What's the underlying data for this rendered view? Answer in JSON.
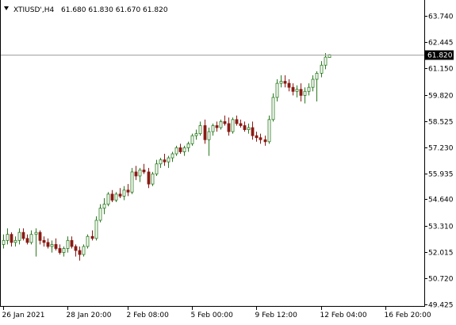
{
  "header": {
    "symbol_caption": "XTIUSD',H4",
    "ohlc_values": "61.680 61.830 61.670 61.820",
    "menu_icon": "triangle-down-icon"
  },
  "price_label": "61.820",
  "colors": {
    "background": "#ffffff",
    "axis": "#000000",
    "bull_body": "#ffffff",
    "bear_body": "#000000",
    "up_shadow": "#2a7a1f",
    "down_shadow": "#8a1a14",
    "candle_outline": "#000000",
    "price_line": "#a0a0a0",
    "price_label_bg": "#000000",
    "price_label_text": "#ffffff"
  },
  "chart_data": {
    "type": "candlestick",
    "symbol": "XTIUSD'",
    "timeframe": "H4",
    "current": {
      "open": 61.68,
      "high": 61.83,
      "low": 61.67,
      "close": 61.82
    },
    "y_ticks": [
      "63.740",
      "62.445",
      "61.150",
      "59.820",
      "58.525",
      "57.230",
      "55.935",
      "54.640",
      "53.310",
      "52.015",
      "50.720",
      "49.425"
    ],
    "y_tick_values": [
      63.74,
      62.445,
      61.15,
      59.82,
      58.525,
      57.23,
      55.935,
      54.64,
      53.31,
      52.015,
      50.72,
      49.425
    ],
    "ylim": [
      49.425,
      64.3
    ],
    "x_ticks": [
      "26 Jan 2021",
      "28 Jan 20:00",
      "2 Feb 08:00",
      "5 Feb 00:00",
      "9 Feb 12:00",
      "12 Feb 04:00",
      "16 Feb 20:00"
    ],
    "x_tick_candle_index": [
      0,
      16,
      31,
      47,
      63,
      79,
      95
    ],
    "grid": false,
    "candles": [
      [
        52.4,
        52.9,
        52.2,
        52.6
      ],
      [
        52.6,
        53.2,
        52.4,
        52.9
      ],
      [
        52.9,
        53.0,
        52.3,
        52.5
      ],
      [
        52.5,
        52.8,
        52.3,
        52.6
      ],
      [
        52.6,
        53.2,
        52.4,
        53.0
      ],
      [
        53.0,
        53.2,
        52.6,
        52.7
      ],
      [
        52.7,
        52.9,
        52.4,
        52.5
      ],
      [
        52.5,
        53.1,
        52.4,
        52.9
      ],
      [
        52.9,
        53.2,
        51.8,
        53.0
      ],
      [
        53.0,
        53.1,
        52.4,
        52.6
      ],
      [
        52.6,
        52.8,
        52.3,
        52.5
      ],
      [
        52.5,
        52.7,
        52.2,
        52.3
      ],
      [
        52.3,
        52.6,
        52.0,
        52.4
      ],
      [
        52.4,
        52.7,
        52.1,
        52.2
      ],
      [
        52.2,
        52.4,
        51.9,
        52.0
      ],
      [
        52.0,
        52.3,
        51.8,
        52.2
      ],
      [
        52.2,
        52.8,
        52.0,
        52.6
      ],
      [
        52.6,
        52.8,
        52.2,
        52.3
      ],
      [
        52.3,
        52.4,
        51.8,
        52.1
      ],
      [
        52.1,
        52.3,
        51.6,
        51.9
      ],
      [
        51.9,
        52.4,
        51.8,
        52.3
      ],
      [
        52.3,
        52.9,
        52.2,
        52.8
      ],
      [
        52.8,
        53.1,
        52.6,
        52.7
      ],
      [
        52.7,
        53.8,
        52.6,
        53.6
      ],
      [
        53.6,
        54.4,
        53.5,
        54.2
      ],
      [
        54.2,
        54.7,
        53.9,
        54.4
      ],
      [
        54.4,
        55.0,
        54.3,
        54.9
      ],
      [
        54.9,
        55.1,
        54.5,
        54.6
      ],
      [
        54.6,
        55.0,
        54.5,
        54.9
      ],
      [
        54.9,
        55.2,
        54.7,
        54.8
      ],
      [
        54.8,
        55.3,
        54.6,
        55.1
      ],
      [
        55.1,
        55.4,
        54.8,
        55.0
      ],
      [
        55.0,
        56.2,
        54.9,
        56.0
      ],
      [
        56.0,
        56.3,
        55.6,
        55.8
      ],
      [
        55.8,
        56.2,
        55.5,
        56.1
      ],
      [
        56.1,
        56.4,
        55.9,
        56.0
      ],
      [
        56.0,
        56.2,
        55.2,
        55.4
      ],
      [
        55.4,
        56.0,
        55.3,
        55.9
      ],
      [
        55.9,
        56.6,
        55.8,
        56.4
      ],
      [
        56.4,
        56.7,
        56.2,
        56.6
      ],
      [
        56.6,
        56.9,
        56.3,
        56.5
      ],
      [
        56.5,
        56.8,
        56.2,
        56.7
      ],
      [
        56.7,
        57.0,
        56.5,
        56.9
      ],
      [
        56.9,
        57.3,
        56.8,
        57.2
      ],
      [
        57.2,
        57.4,
        56.9,
        57.0
      ],
      [
        57.0,
        57.3,
        56.8,
        57.2
      ],
      [
        57.2,
        57.5,
        57.0,
        57.4
      ],
      [
        57.4,
        57.9,
        57.3,
        57.8
      ],
      [
        57.8,
        58.1,
        57.6,
        57.9
      ],
      [
        57.9,
        58.5,
        57.8,
        58.3
      ],
      [
        58.3,
        58.6,
        57.4,
        57.6
      ],
      [
        57.6,
        58.2,
        56.8,
        58.0
      ],
      [
        58.0,
        58.4,
        57.8,
        58.3
      ],
      [
        58.3,
        58.5,
        58.0,
        58.2
      ],
      [
        58.2,
        58.6,
        58.1,
        58.5
      ],
      [
        58.5,
        58.8,
        58.3,
        58.4
      ],
      [
        58.4,
        58.7,
        57.8,
        58.0
      ],
      [
        58.0,
        58.7,
        57.9,
        58.6
      ],
      [
        58.6,
        58.8,
        58.3,
        58.4
      ],
      [
        58.4,
        58.6,
        58.2,
        58.3
      ],
      [
        58.3,
        58.5,
        58.0,
        58.1
      ],
      [
        58.1,
        58.4,
        57.9,
        58.2
      ],
      [
        58.2,
        58.5,
        57.6,
        57.8
      ],
      [
        57.8,
        58.0,
        57.5,
        57.7
      ],
      [
        57.7,
        57.9,
        57.4,
        57.6
      ],
      [
        57.6,
        57.8,
        57.3,
        57.5
      ],
      [
        57.5,
        58.8,
        57.4,
        58.6
      ],
      [
        58.6,
        59.9,
        58.5,
        59.7
      ],
      [
        59.7,
        60.6,
        59.5,
        60.4
      ],
      [
        60.4,
        60.8,
        60.2,
        60.5
      ],
      [
        60.5,
        60.8,
        60.2,
        60.4
      ],
      [
        60.4,
        60.6,
        60.0,
        60.2
      ],
      [
        60.2,
        60.4,
        59.8,
        60.0
      ],
      [
        60.0,
        60.3,
        59.7,
        60.1
      ],
      [
        60.1,
        60.4,
        59.5,
        59.8
      ],
      [
        59.8,
        60.2,
        59.4,
        60.0
      ],
      [
        60.0,
        60.4,
        59.8,
        60.2
      ],
      [
        60.2,
        60.8,
        60.0,
        60.6
      ],
      [
        60.6,
        61.0,
        59.5,
        60.9
      ],
      [
        60.9,
        61.5,
        60.7,
        61.3
      ],
      [
        61.3,
        61.9,
        61.1,
        61.7
      ],
      [
        61.68,
        61.83,
        61.67,
        61.82
      ]
    ]
  }
}
